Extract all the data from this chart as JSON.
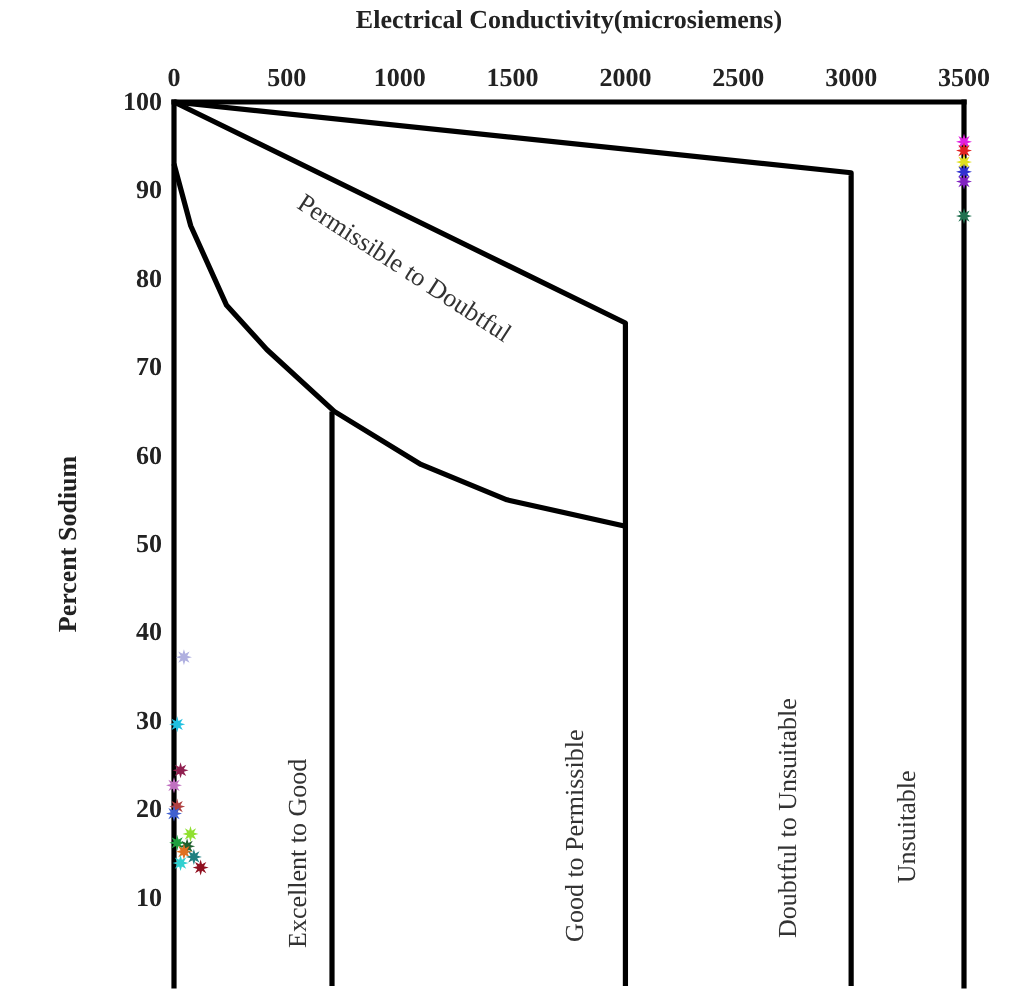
{
  "chart_data": {
    "type": "scatter",
    "xlabel": "Electrical Conductivity(microsiemens)",
    "ylabel": "Percent Sodium",
    "xlim": [
      0,
      3500
    ],
    "xticks": [
      0,
      500,
      1000,
      1500,
      2000,
      2500,
      3000,
      3500
    ],
    "ylim": [
      0,
      100
    ],
    "yticks": [
      10,
      20,
      30,
      40,
      50,
      60,
      70,
      80,
      90,
      100
    ],
    "grid": false,
    "series": [
      {
        "type": "line",
        "color": "#000000",
        "x": [
          0,
          3000,
          3000
        ],
        "values": [
          100,
          92,
          0
        ]
      },
      {
        "type": "line",
        "color": "#000000",
        "x": [
          0,
          2000,
          2000
        ],
        "values": [
          100,
          75,
          0
        ]
      },
      {
        "type": "line",
        "color": "#000000",
        "x": [
          0,
          74,
          233,
          411,
          710,
          1094,
          1475,
          2000
        ],
        "values": [
          93,
          86,
          77,
          72,
          65,
          59,
          55,
          52
        ]
      },
      {
        "type": "line",
        "color": "#000000",
        "x": [
          700,
          700
        ],
        "values": [
          65,
          0
        ]
      },
      {
        "marker": "star",
        "x": [
          3500,
          3500,
          3500,
          3500,
          3500,
          3500,
          44,
          14,
          29,
          0,
          14,
          0,
          73,
          14,
          58,
          44,
          88,
          29,
          118
        ],
        "values": [
          95.5,
          94.5,
          93.2,
          92.1,
          91,
          87.1,
          37.2,
          29.6,
          24.4,
          22.7,
          20.3,
          19.5,
          17.2,
          16.2,
          15.8,
          15.2,
          14.6,
          13.9,
          13.4
        ],
        "colors": [
          "#e020e0",
          "#e02020",
          "#e0e020",
          "#3030d0",
          "#8020c0",
          "#207050",
          "#b0b0e0",
          "#20c0e0",
          "#902050",
          "#c070c0",
          "#b04040",
          "#4060d0",
          "#90e030",
          "#20a040",
          "#206030",
          "#e07020",
          "#208080",
          "#30d0d0",
          "#901020"
        ]
      }
    ],
    "annotations": [
      "Permissible to Doubtful",
      "Excellent to Good",
      "Good to Permissible",
      "Doubtful to Unsuitable",
      "Unsuitable"
    ]
  }
}
